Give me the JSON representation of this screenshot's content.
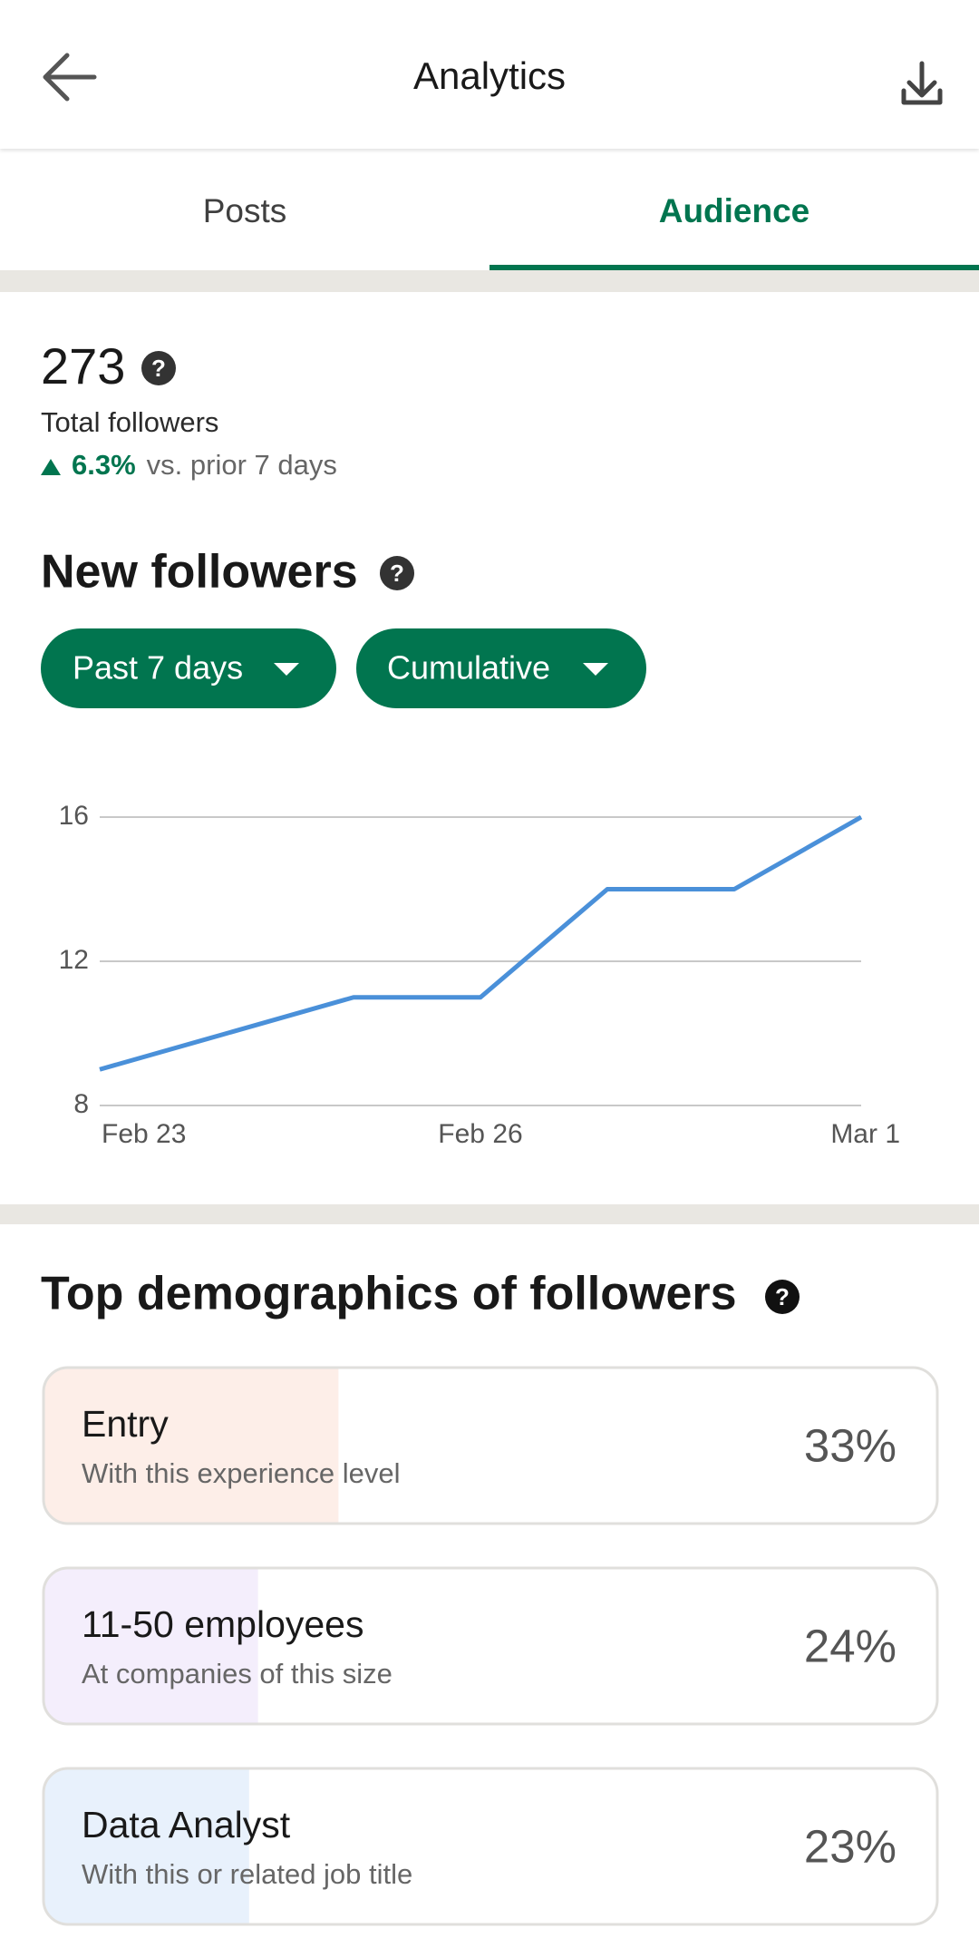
{
  "header": {
    "title": "Analytics"
  },
  "tabs": [
    "Posts",
    "Audience"
  ],
  "summary": {
    "value": "273",
    "label": "Total followers",
    "change": "6.3%",
    "change_note": "vs. prior 7 days"
  },
  "new_followers": {
    "title": "New followers",
    "filters": [
      "Past 7 days",
      "Cumulative"
    ],
    "chart_data": {
      "type": "line",
      "categories": [
        "Feb 23",
        null,
        null,
        "Feb 26",
        null,
        null,
        "Mar 1"
      ],
      "values": [
        9,
        10,
        11,
        11,
        14,
        14,
        16
      ],
      "color": "#4a90d9",
      "ylim": [
        8,
        16
      ],
      "yticks": [
        8,
        12,
        16
      ],
      "grid": true
    }
  },
  "demographics": {
    "title": "Top demographics of followers",
    "items": [
      {
        "label": "Entry",
        "sublabel": "With this experience level",
        "value": 33,
        "value_label": "33%",
        "color": "#fdeee8"
      },
      {
        "label": "11-50 employees",
        "sublabel": "At companies of this size",
        "value": 24,
        "value_label": "24%",
        "color": "#f4eefc"
      },
      {
        "label": "Data Analyst",
        "sublabel": "With this or related job title",
        "value": 23,
        "value_label": "23%",
        "color": "#e8f1fc"
      }
    ]
  }
}
